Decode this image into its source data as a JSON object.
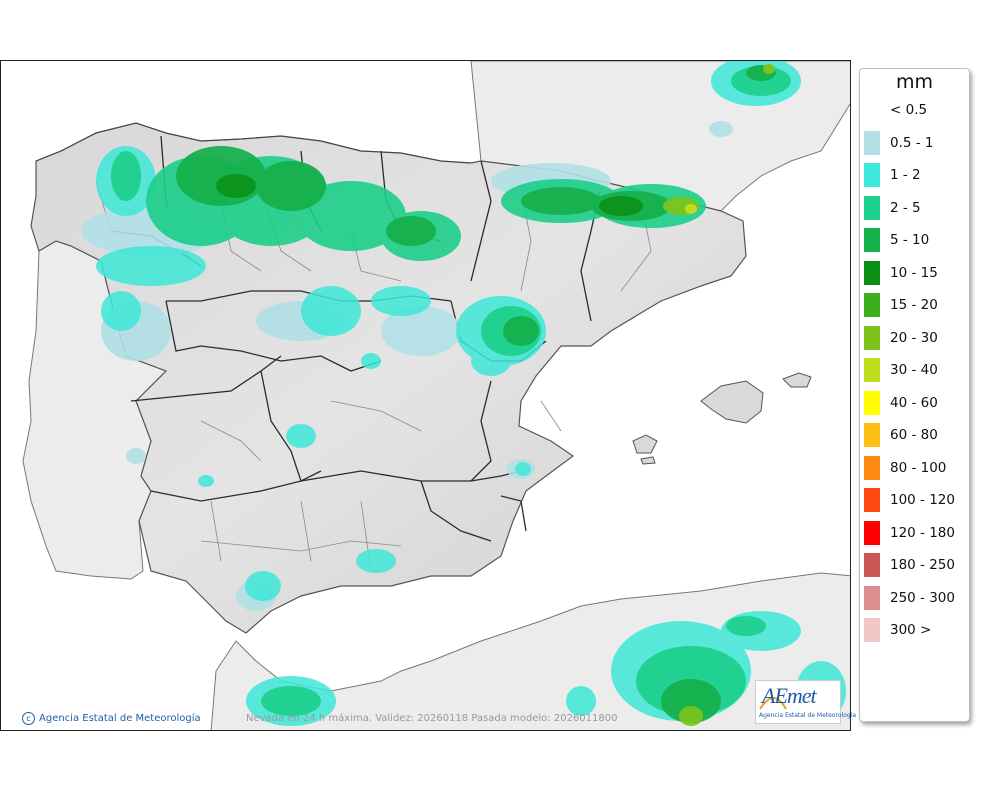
{
  "map": {
    "product": "Nevada en 24 h máxima",
    "caption": "Nevada en 24 h máxima. Validez: 20260118 Pasada modelo: 2026011800",
    "credit": "Agencia Estatal de Meteorología",
    "logo_text": "AEmet",
    "logo_subtitle": "Agencia Estatal de Meteorología",
    "colors": {
      "sea": "#ffffff",
      "land_outside": "#ececec",
      "coast": "#666666",
      "borders": "#333333"
    }
  },
  "legend": {
    "unit": "mm",
    "items": [
      {
        "label": "< 0.5",
        "color": "#ffffff"
      },
      {
        "label": "0.5 - 1",
        "color": "#b0e0e6"
      },
      {
        "label": "1 - 2",
        "color": "#3ee8d8"
      },
      {
        "label": "2 - 5",
        "color": "#1ccf8a"
      },
      {
        "label": "5 - 10",
        "color": "#16b04c"
      },
      {
        "label": "10 - 15",
        "color": "#0a8f14"
      },
      {
        "label": "15 - 20",
        "color": "#3caf1a"
      },
      {
        "label": "20 - 30",
        "color": "#7cc41c"
      },
      {
        "label": "30 - 40",
        "color": "#bedd1c"
      },
      {
        "label": "40 - 60",
        "color": "#ffff00"
      },
      {
        "label": "60 - 80",
        "color": "#ffbe14"
      },
      {
        "label": "80 - 100",
        "color": "#ff8a12"
      },
      {
        "label": "100 - 120",
        "color": "#ff4a12"
      },
      {
        "label": "120 - 180",
        "color": "#ff0000"
      },
      {
        "label": "180 - 250",
        "color": "#cc5555"
      },
      {
        "label": "250 - 300",
        "color": "#dd8f8f"
      },
      {
        "label": "300 >",
        "color": "#f0c8c8"
      }
    ]
  }
}
